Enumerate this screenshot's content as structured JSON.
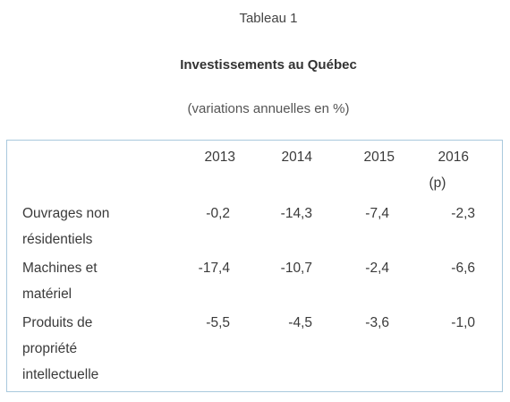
{
  "captions": {
    "table_number": "Tableau 1",
    "title": "Investissements au Québec",
    "subtitle": "(variations annuelles en %)"
  },
  "table": {
    "years": [
      {
        "line1": "2013",
        "line2": ""
      },
      {
        "line1": "2014",
        "line2": ""
      },
      {
        "line1": "2015",
        "line2": ""
      },
      {
        "line1": "2016",
        "line2": "(p)"
      }
    ],
    "rows": [
      {
        "label_lines": [
          "Ouvrages non",
          "résidentiels"
        ],
        "values": [
          "-0,2",
          "-14,3",
          "-7,4",
          "-2,3"
        ]
      },
      {
        "label_lines": [
          "Machines et",
          "matériel"
        ],
        "values": [
          "-17,4",
          "-10,7",
          "-2,4",
          "-6,6"
        ]
      },
      {
        "label_lines": [
          "Produits de",
          "propriété",
          "intellectuelle"
        ],
        "values": [
          "-5,5",
          "-4,5",
          "-3,6",
          "-1,0"
        ]
      }
    ]
  }
}
